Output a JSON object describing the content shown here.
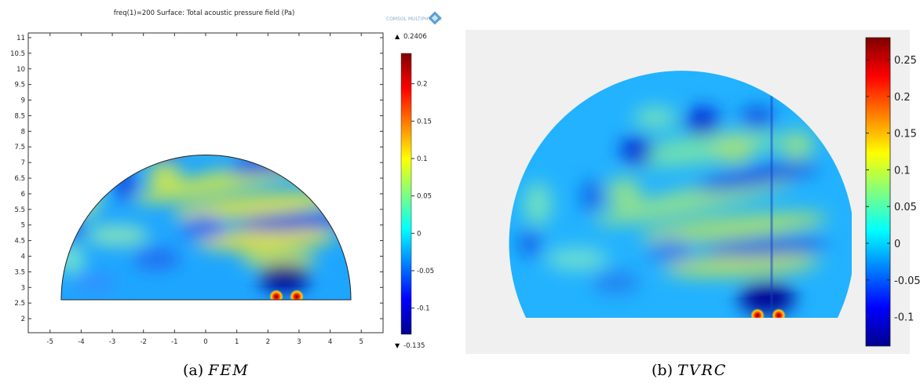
{
  "chart_data": [
    {
      "type": "heatmap",
      "title": "freq(1)=200   Surface: Total acoustic pressure field (Pa)",
      "logo": "COMSOL MULTIPHYSICS",
      "caption_label": "(a)",
      "caption_name": "FEM",
      "x_ticks": [
        "-5",
        "-4",
        "-3",
        "-2",
        "-1",
        "0",
        "1",
        "2",
        "3",
        "4",
        "5"
      ],
      "y_ticks": [
        "11",
        "10.5",
        "10",
        "9.5",
        "9",
        "8.5",
        "8",
        "7.5",
        "7",
        "6.5",
        "6",
        "5.5",
        "5",
        "4.5",
        "4",
        "3.5",
        "3",
        "2.5",
        "2"
      ],
      "xlim": [
        -5.7,
        5.7
      ],
      "ylim": [
        1.55,
        11.15
      ],
      "domain": {
        "shape": "truncated-disc",
        "center": [
          0,
          5.6
        ],
        "radius": 4.4,
        "cut_y": 2.75
      },
      "sources": [
        {
          "x": 2.2,
          "y": 2.85
        },
        {
          "x": 2.8,
          "y": 2.85
        }
      ],
      "colorbar": {
        "max_label": "0.2406",
        "min_label": "-0.135",
        "ticks": [
          "0.2",
          "0.15",
          "0.1",
          "0.05",
          "0",
          "-0.05",
          "-0.1"
        ],
        "range": [
          -0.135,
          0.2406
        ]
      }
    },
    {
      "type": "heatmap",
      "caption_label": "(b)",
      "caption_name": "TVRC",
      "domain": {
        "shape": "truncated-disc"
      },
      "colorbar": {
        "ticks": [
          "0.25",
          "0.2",
          "0.15",
          "0.1",
          "0.05",
          "0",
          "-0.05",
          "-0.1"
        ],
        "range": [
          -0.14,
          0.28
        ]
      }
    }
  ],
  "colors": {
    "jet_low": "#00008f",
    "jet_mid": "#00c8ff",
    "jet_high": "#7f0000",
    "panel_b_background": "#f0f0f0"
  }
}
